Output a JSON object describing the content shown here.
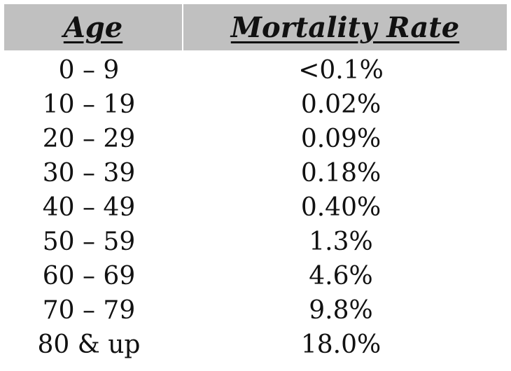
{
  "chart_data": {
    "type": "table",
    "columns": [
      "Age",
      "Mortality Rate"
    ],
    "rows": [
      {
        "age": "0 – 9",
        "rate": "<0.1%"
      },
      {
        "age": "10 – 19",
        "rate": "0.02%"
      },
      {
        "age": "20 – 29",
        "rate": "0.09%"
      },
      {
        "age": "30 – 39",
        "rate": "0.18%"
      },
      {
        "age": "40 – 49",
        "rate": "0.40%"
      },
      {
        "age": "50 – 59",
        "rate": "1.3%"
      },
      {
        "age": "60 – 69",
        "rate": "4.6%"
      },
      {
        "age": "70 – 79",
        "rate": "9.8%"
      },
      {
        "age": "80 & up",
        "rate": "18.0%"
      }
    ]
  },
  "colors": {
    "header_background": "#c0c0c0",
    "text": "#111111",
    "page_background": "#ffffff"
  }
}
